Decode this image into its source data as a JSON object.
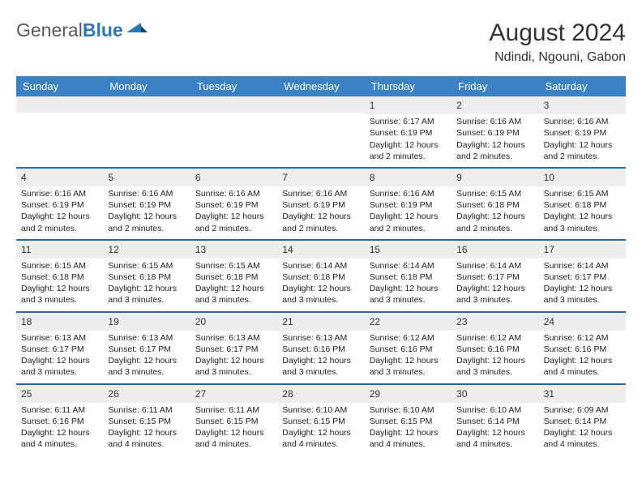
{
  "brand": {
    "part1": "General",
    "part2": "Blue"
  },
  "title": "August 2024",
  "location": "Ndindi, Ngouni, Gabon",
  "colors": {
    "header_bg": "#3b82c4",
    "header_text": "#ffffff",
    "daynum_bg": "#eceeef",
    "week_border": "#2a6aa8",
    "brand_gray": "#5a5a5a",
    "brand_blue": "#2a7ab8",
    "text": "#222222"
  },
  "dayNames": [
    "Sunday",
    "Monday",
    "Tuesday",
    "Wednesday",
    "Thursday",
    "Friday",
    "Saturday"
  ],
  "layout": {
    "columns": 7,
    "weeks": 5,
    "blank_cells_before": 4
  },
  "days": [
    {
      "n": 1,
      "sunrise": "6:17 AM",
      "sunset": "6:19 PM",
      "daylight": "12 hours and 2 minutes."
    },
    {
      "n": 2,
      "sunrise": "6:16 AM",
      "sunset": "6:19 PM",
      "daylight": "12 hours and 2 minutes."
    },
    {
      "n": 3,
      "sunrise": "6:16 AM",
      "sunset": "6:19 PM",
      "daylight": "12 hours and 2 minutes."
    },
    {
      "n": 4,
      "sunrise": "6:16 AM",
      "sunset": "6:19 PM",
      "daylight": "12 hours and 2 minutes."
    },
    {
      "n": 5,
      "sunrise": "6:16 AM",
      "sunset": "6:19 PM",
      "daylight": "12 hours and 2 minutes."
    },
    {
      "n": 6,
      "sunrise": "6:16 AM",
      "sunset": "6:19 PM",
      "daylight": "12 hours and 2 minutes."
    },
    {
      "n": 7,
      "sunrise": "6:16 AM",
      "sunset": "6:19 PM",
      "daylight": "12 hours and 2 minutes."
    },
    {
      "n": 8,
      "sunrise": "6:16 AM",
      "sunset": "6:19 PM",
      "daylight": "12 hours and 2 minutes."
    },
    {
      "n": 9,
      "sunrise": "6:15 AM",
      "sunset": "6:18 PM",
      "daylight": "12 hours and 2 minutes."
    },
    {
      "n": 10,
      "sunrise": "6:15 AM",
      "sunset": "6:18 PM",
      "daylight": "12 hours and 3 minutes."
    },
    {
      "n": 11,
      "sunrise": "6:15 AM",
      "sunset": "6:18 PM",
      "daylight": "12 hours and 3 minutes."
    },
    {
      "n": 12,
      "sunrise": "6:15 AM",
      "sunset": "6:18 PM",
      "daylight": "12 hours and 3 minutes."
    },
    {
      "n": 13,
      "sunrise": "6:15 AM",
      "sunset": "6:18 PM",
      "daylight": "12 hours and 3 minutes."
    },
    {
      "n": 14,
      "sunrise": "6:14 AM",
      "sunset": "6:18 PM",
      "daylight": "12 hours and 3 minutes."
    },
    {
      "n": 15,
      "sunrise": "6:14 AM",
      "sunset": "6:18 PM",
      "daylight": "12 hours and 3 minutes."
    },
    {
      "n": 16,
      "sunrise": "6:14 AM",
      "sunset": "6:17 PM",
      "daylight": "12 hours and 3 minutes."
    },
    {
      "n": 17,
      "sunrise": "6:14 AM",
      "sunset": "6:17 PM",
      "daylight": "12 hours and 3 minutes."
    },
    {
      "n": 18,
      "sunrise": "6:13 AM",
      "sunset": "6:17 PM",
      "daylight": "12 hours and 3 minutes."
    },
    {
      "n": 19,
      "sunrise": "6:13 AM",
      "sunset": "6:17 PM",
      "daylight": "12 hours and 3 minutes."
    },
    {
      "n": 20,
      "sunrise": "6:13 AM",
      "sunset": "6:17 PM",
      "daylight": "12 hours and 3 minutes."
    },
    {
      "n": 21,
      "sunrise": "6:13 AM",
      "sunset": "6:16 PM",
      "daylight": "12 hours and 3 minutes."
    },
    {
      "n": 22,
      "sunrise": "6:12 AM",
      "sunset": "6:16 PM",
      "daylight": "12 hours and 3 minutes."
    },
    {
      "n": 23,
      "sunrise": "6:12 AM",
      "sunset": "6:16 PM",
      "daylight": "12 hours and 3 minutes."
    },
    {
      "n": 24,
      "sunrise": "6:12 AM",
      "sunset": "6:16 PM",
      "daylight": "12 hours and 4 minutes."
    },
    {
      "n": 25,
      "sunrise": "6:11 AM",
      "sunset": "6:16 PM",
      "daylight": "12 hours and 4 minutes."
    },
    {
      "n": 26,
      "sunrise": "6:11 AM",
      "sunset": "6:15 PM",
      "daylight": "12 hours and 4 minutes."
    },
    {
      "n": 27,
      "sunrise": "6:11 AM",
      "sunset": "6:15 PM",
      "daylight": "12 hours and 4 minutes."
    },
    {
      "n": 28,
      "sunrise": "6:10 AM",
      "sunset": "6:15 PM",
      "daylight": "12 hours and 4 minutes."
    },
    {
      "n": 29,
      "sunrise": "6:10 AM",
      "sunset": "6:15 PM",
      "daylight": "12 hours and 4 minutes."
    },
    {
      "n": 30,
      "sunrise": "6:10 AM",
      "sunset": "6:14 PM",
      "daylight": "12 hours and 4 minutes."
    },
    {
      "n": 31,
      "sunrise": "6:09 AM",
      "sunset": "6:14 PM",
      "daylight": "12 hours and 4 minutes."
    }
  ],
  "labels": {
    "sunrise": "Sunrise:",
    "sunset": "Sunset:",
    "daylight": "Daylight:"
  }
}
